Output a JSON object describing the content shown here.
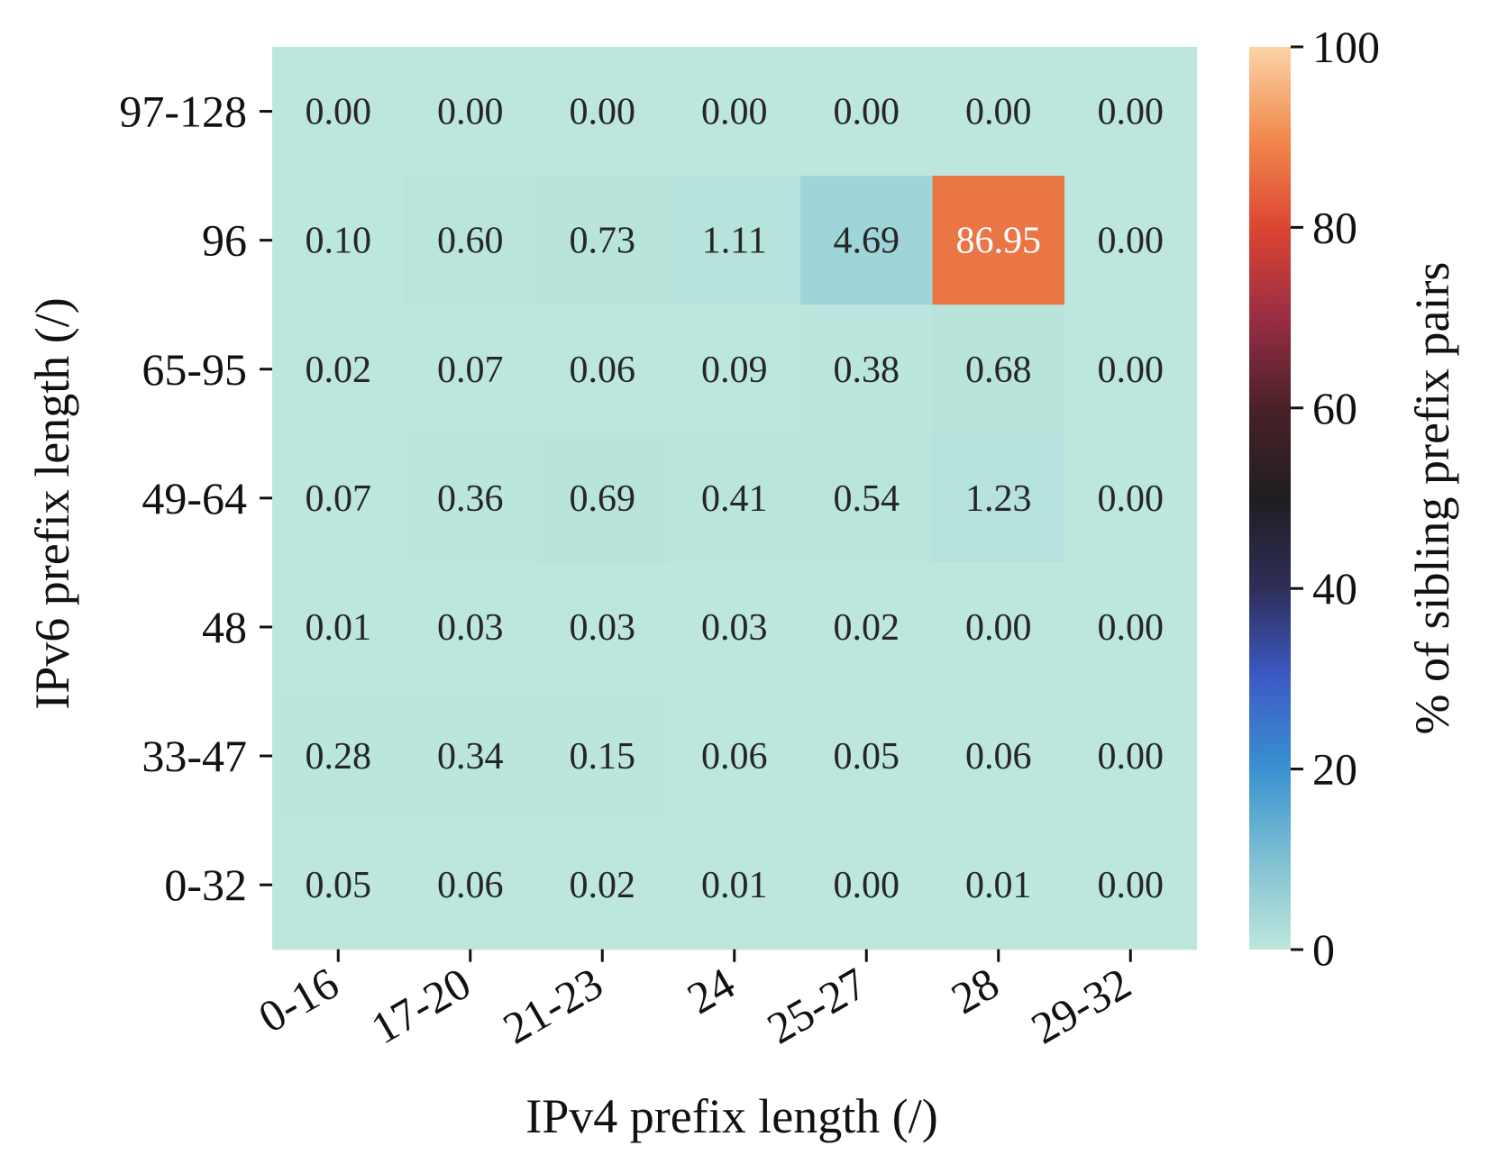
{
  "chart_data": {
    "type": "heatmap",
    "xlabel": "IPv4 prefix length (/)",
    "ylabel": "IPv6 prefix length (/)",
    "x_categories": [
      "0-16",
      "17-20",
      "21-23",
      "24",
      "25-27",
      "28",
      "29-32"
    ],
    "y_categories": [
      "97-128",
      "96",
      "65-95",
      "49-64",
      "48",
      "33-47",
      "0-32"
    ],
    "values": [
      [
        0.0,
        0.0,
        0.0,
        0.0,
        0.0,
        0.0,
        0.0
      ],
      [
        0.1,
        0.6,
        0.73,
        1.11,
        4.69,
        86.95,
        0.0
      ],
      [
        0.02,
        0.07,
        0.06,
        0.09,
        0.38,
        0.68,
        0.0
      ],
      [
        0.07,
        0.36,
        0.69,
        0.41,
        0.54,
        1.23,
        0.0
      ],
      [
        0.01,
        0.03,
        0.03,
        0.03,
        0.02,
        0.0,
        0.0
      ],
      [
        0.28,
        0.34,
        0.15,
        0.06,
        0.05,
        0.06,
        0.0
      ],
      [
        0.05,
        0.06,
        0.02,
        0.01,
        0.0,
        0.01,
        0.0
      ]
    ],
    "value_format_decimals": 2,
    "colorbar": {
      "label": "% of sibling prefix pairs",
      "range": [
        0,
        100
      ],
      "ticks": [
        0,
        20,
        40,
        60,
        80,
        100
      ],
      "colormap": "icefire"
    }
  }
}
